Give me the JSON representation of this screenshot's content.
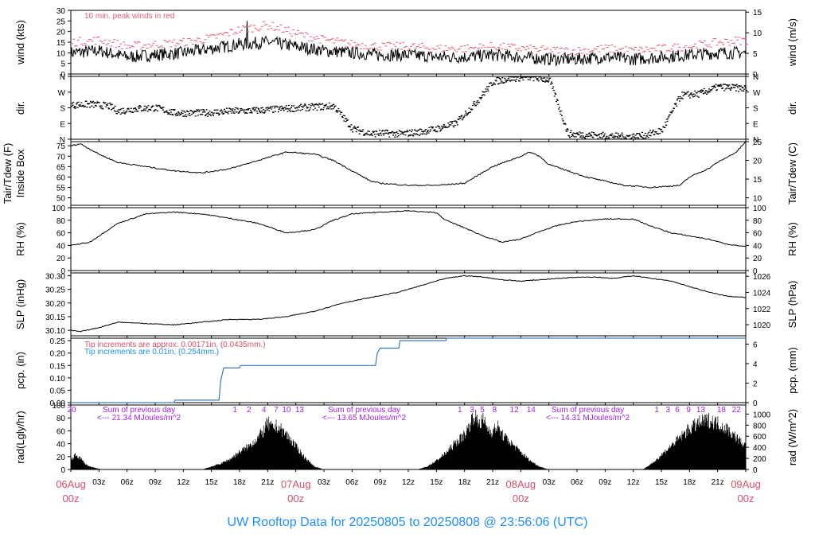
{
  "page_title": "UW Rooftop Data for 20250805  to  20250808 @ 23:56:06  (UTC)",
  "x_axis": {
    "hour_ticks": [
      "03z",
      "06z",
      "09z",
      "12z",
      "15z",
      "18z",
      "21z"
    ],
    "day_labels": [
      {
        "date": "06Aug",
        "time": "00z"
      },
      {
        "date": "07Aug",
        "time": "00z"
      },
      {
        "date": "08Aug",
        "time": "00z"
      },
      {
        "date": "09Aug",
        "time": "00z"
      }
    ],
    "hours_total": 72
  },
  "colors": {
    "data": "#000000",
    "peak": "#e8607a",
    "precip_line": "#3a7abf",
    "title": "#1e90ff",
    "day_label": "#d8506a",
    "annot_magenta": "#a020f0",
    "annot_red": "#d8506a",
    "annot_blue": "#1e90ff"
  },
  "chart_data": [
    {
      "id": "wind",
      "type": "line",
      "ylabel_left": "wind (kts)",
      "ylabel_right": "wind (m/s)",
      "ylim": [
        0,
        30
      ],
      "yticks_left": [
        0,
        5,
        10,
        15,
        20,
        25,
        30
      ],
      "yticks_right": [
        0,
        5,
        10,
        15
      ],
      "annotation": "10 min. peak winds in red",
      "series": [
        {
          "kind": "wind",
          "x": [
            0,
            3,
            6,
            9,
            12,
            15,
            18,
            21,
            24,
            27,
            30,
            33,
            36,
            39,
            42,
            45,
            48,
            51,
            54,
            57,
            60,
            63,
            66,
            69,
            72
          ],
          "values": [
            10,
            11,
            8,
            9,
            10,
            12,
            14,
            15,
            13,
            11,
            10,
            9,
            9,
            8,
            8,
            9,
            8,
            7,
            7,
            8,
            7,
            8,
            9,
            10,
            10
          ]
        },
        {
          "kind": "peak",
          "x": [
            0,
            3,
            6,
            9,
            12,
            15,
            18,
            21,
            24,
            27,
            30,
            33,
            36,
            39,
            42,
            45,
            48,
            51,
            54,
            57,
            60,
            63,
            66,
            69,
            72
          ],
          "values": [
            15,
            16,
            13,
            14,
            15,
            17,
            21,
            23,
            19,
            16,
            14,
            13,
            13,
            12,
            12,
            13,
            12,
            11,
            11,
            12,
            11,
            12,
            13,
            15,
            16
          ]
        }
      ]
    },
    {
      "id": "dir",
      "type": "scatter",
      "ylabel_left": "dir.",
      "ylabel_right": "dir.",
      "ylim": [
        0,
        360
      ],
      "yticks_left_labels": [
        "N",
        "E",
        "S",
        "W",
        "N"
      ],
      "yticks_right_labels": [
        "N",
        "E",
        "S",
        "W",
        "N"
      ],
      "series": [
        {
          "x": [
            0,
            2,
            4,
            5,
            7,
            9,
            11,
            14,
            17,
            20,
            23,
            26,
            28,
            30,
            32,
            33,
            35,
            37,
            39,
            41,
            43,
            45,
            47,
            49,
            51,
            53,
            55,
            57,
            59,
            61,
            63,
            65,
            67,
            69,
            72
          ],
          "values": [
            195,
            200,
            190,
            160,
            175,
            180,
            150,
            150,
            160,
            165,
            175,
            185,
            190,
            60,
            30,
            35,
            30,
            40,
            60,
            90,
            200,
            330,
            350,
            355,
            340,
            30,
            25,
            20,
            15,
            20,
            50,
            250,
            260,
            300,
            290
          ]
        }
      ]
    },
    {
      "id": "temp",
      "type": "line",
      "ylabel_left": "Tair/Tdew (F)",
      "ylabel_left2": "Inside Box",
      "ylabel_right": "Tair/Tdew (C)",
      "ylim": [
        46.4,
        77.0
      ],
      "yticks_left": [
        50,
        55,
        60,
        65,
        70,
        75
      ],
      "yticks_right": [
        10,
        15,
        20,
        25
      ],
      "series": [
        {
          "x": [
            0,
            1,
            3,
            5,
            8,
            11,
            14,
            17,
            20,
            23,
            26,
            28,
            30,
            32,
            33,
            36,
            39,
            42,
            45,
            48,
            49,
            50,
            51,
            53,
            55,
            57,
            59,
            62,
            65,
            66,
            68,
            69,
            71,
            72
          ],
          "values": [
            75,
            76,
            71,
            67,
            65,
            63,
            62,
            64,
            68,
            72,
            71,
            68,
            63,
            58,
            57,
            56,
            56,
            57,
            65,
            70,
            72,
            70,
            66,
            63,
            60,
            58,
            56,
            55,
            56,
            60,
            64,
            67,
            72,
            77
          ]
        }
      ]
    },
    {
      "id": "rh",
      "type": "line",
      "ylabel_left": "RH (%)",
      "ylabel_right": "RH (%)",
      "ylim": [
        0,
        100
      ],
      "yticks_left": [
        0,
        20,
        40,
        60,
        80,
        100
      ],
      "yticks_right": [
        0,
        20,
        40,
        60,
        80,
        100
      ],
      "series": [
        {
          "x": [
            0,
            2,
            3,
            5,
            8,
            11,
            14,
            17,
            20,
            23,
            26,
            28,
            30,
            33,
            36,
            39,
            40,
            42,
            44,
            46,
            48,
            50,
            52,
            54,
            57,
            60,
            62,
            64,
            66,
            68,
            70,
            72
          ],
          "values": [
            40,
            45,
            55,
            75,
            90,
            93,
            90,
            83,
            75,
            60,
            65,
            80,
            90,
            93,
            95,
            92,
            80,
            68,
            55,
            45,
            50,
            62,
            72,
            78,
            82,
            82,
            70,
            60,
            55,
            50,
            42,
            38
          ]
        }
      ]
    },
    {
      "id": "slp",
      "type": "line",
      "ylabel_left": "SLP (inHg)",
      "ylabel_right": "SLP (hPa)",
      "ylim": [
        30.08,
        30.31
      ],
      "yticks_left": [
        30.1,
        30.15,
        30.2,
        30.25,
        30.3
      ],
      "yticks_left_labels": [
        "30.10",
        "30.15",
        "30.20",
        "30.25",
        "30.30"
      ],
      "yticks_right": [
        1020,
        1022,
        1024,
        1026
      ],
      "series": [
        {
          "x": [
            0,
            1,
            3,
            5,
            8,
            11,
            14,
            17,
            20,
            23,
            26,
            29,
            32,
            35,
            38,
            40,
            42,
            44,
            46,
            48,
            50,
            52,
            54,
            56,
            58,
            60,
            62,
            64,
            66,
            68,
            70,
            72
          ],
          "values": [
            30.1,
            30.095,
            30.11,
            30.13,
            30.125,
            30.12,
            30.13,
            30.14,
            30.14,
            30.15,
            30.17,
            30.2,
            30.22,
            30.24,
            30.27,
            30.29,
            30.3,
            30.295,
            30.285,
            30.28,
            30.285,
            30.29,
            30.295,
            30.295,
            30.29,
            30.3,
            30.29,
            30.28,
            30.26,
            30.24,
            30.225,
            30.22
          ]
        }
      ]
    },
    {
      "id": "pcp",
      "type": "line",
      "ylabel_left": "pcp. (in)",
      "ylabel_right": "pcp. (mm)",
      "ylim": [
        0,
        0.26
      ],
      "yticks_left": [
        0,
        0.05,
        0.1,
        0.15,
        0.2,
        0.25
      ],
      "yticks_left_labels": [
        "0.00",
        "0.05",
        "0.10",
        "0.15",
        "0.20",
        "0.25"
      ],
      "yticks_right": [
        0,
        2,
        4,
        6
      ],
      "annotation_red": "Tip increments are approx. 0.00171in. (0.0435mm.)",
      "annotation_blue": "Tip increments are 0.01in. (0.254mm.)",
      "series": [
        {
          "x": [
            0,
            11,
            11.1,
            15.8,
            16,
            16.3,
            18,
            18.1,
            32.5,
            32.7,
            33,
            35,
            35.1,
            40,
            40.1,
            72
          ],
          "values": [
            0,
            0,
            0.01,
            0.01,
            0.09,
            0.14,
            0.14,
            0.15,
            0.15,
            0.2,
            0.22,
            0.22,
            0.25,
            0.25,
            0.26,
            0.26
          ]
        }
      ]
    },
    {
      "id": "rad",
      "type": "area",
      "ylabel_left": "rad(Lgly/hr)",
      "ylabel_right": "rad (W/m^2)",
      "ylim": [
        0,
        100
      ],
      "yticks_left": [
        0,
        20,
        40,
        60,
        80,
        100
      ],
      "yticks_right": [
        0,
        200,
        400,
        600,
        800,
        1000
      ],
      "annotations": [
        {
          "text": "Sum of previous day",
          "kind": "magenta"
        },
        {
          "text": "<--- 21.34 MJoules/m^2",
          "kind": "magenta"
        },
        {
          "text": "Sum of previous day",
          "kind": "magenta"
        },
        {
          "text": "<--- 13.65 MJoules/m^2",
          "kind": "magenta"
        },
        {
          "text": "Sum of previous day",
          "kind": "magenta"
        },
        {
          "text": "<--- 14.31 MJoules/m^2",
          "kind": "magenta"
        }
      ],
      "hour_labels": [
        {
          "x": 0.1,
          "text": "20"
        },
        {
          "x": 17.5,
          "text": "1"
        },
        {
          "x": 19.0,
          "text": "2"
        },
        {
          "x": 20.6,
          "text": "4"
        },
        {
          "x": 21.9,
          "text": "7"
        },
        {
          "x": 23.0,
          "text": "10"
        },
        {
          "x": 24.4,
          "text": "13"
        },
        {
          "x": 41.5,
          "text": "1"
        },
        {
          "x": 42.8,
          "text": "3"
        },
        {
          "x": 43.9,
          "text": "5"
        },
        {
          "x": 45.2,
          "text": "8"
        },
        {
          "x": 47.3,
          "text": "12"
        },
        {
          "x": 49.1,
          "text": "14"
        },
        {
          "x": 62.5,
          "text": "1"
        },
        {
          "x": 63.7,
          "text": "3"
        },
        {
          "x": 64.7,
          "text": "6"
        },
        {
          "x": 65.9,
          "text": "9"
        },
        {
          "x": 67.2,
          "text": "13"
        },
        {
          "x": 69.4,
          "text": "18"
        },
        {
          "x": 71.0,
          "text": "22"
        }
      ],
      "series": [
        {
          "x": [
            0,
            0.5,
            1,
            1.5,
            2,
            2.5,
            3,
            3.5,
            14,
            15,
            16,
            17,
            18,
            19,
            20,
            20.5,
            21,
            21.5,
            22,
            23,
            24,
            25,
            26,
            27,
            37,
            38,
            39,
            40,
            41,
            42,
            42.5,
            43,
            43.5,
            44,
            44.5,
            45,
            45.5,
            46,
            47,
            48,
            49,
            50,
            51,
            61,
            62,
            63,
            64,
            65,
            66,
            67,
            68,
            69,
            70,
            71,
            72
          ],
          "values": [
            15,
            25,
            20,
            10,
            5,
            3,
            1,
            0,
            0,
            5,
            10,
            18,
            30,
            40,
            55,
            65,
            80,
            70,
            75,
            60,
            40,
            20,
            5,
            0,
            0,
            5,
            15,
            28,
            45,
            60,
            75,
            95,
            80,
            85,
            70,
            65,
            75,
            60,
            45,
            30,
            15,
            5,
            0,
            0,
            10,
            25,
            40,
            55,
            70,
            80,
            85,
            80,
            70,
            55,
            40
          ]
        }
      ]
    }
  ]
}
